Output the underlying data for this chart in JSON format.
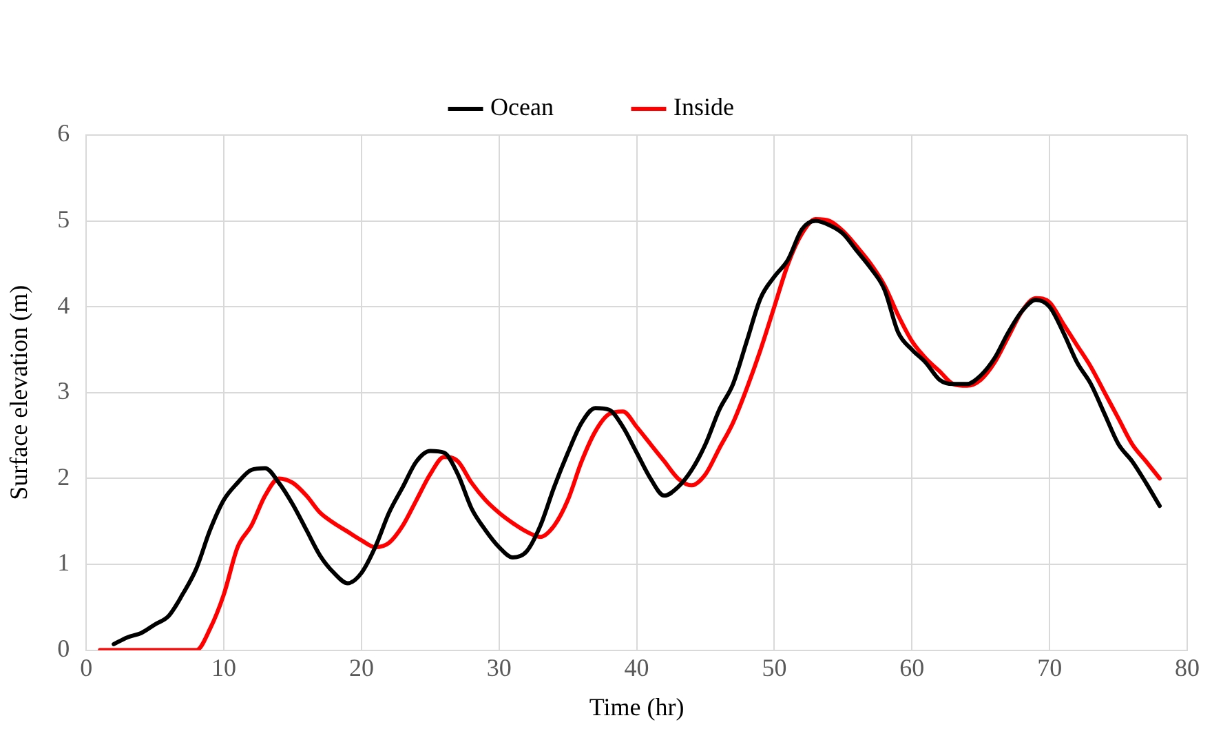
{
  "chart_data": {
    "type": "line",
    "xlabel": "Time (hr)",
    "ylabel": "Surface elevation (m)",
    "xlim": [
      0,
      80
    ],
    "xticks": [
      0,
      10,
      20,
      30,
      40,
      50,
      60,
      70,
      80
    ],
    "ylim": [
      0,
      6
    ],
    "yticks": [
      0,
      1,
      2,
      3,
      4,
      5,
      6
    ],
    "grid": true,
    "legend": "top",
    "marker": "none",
    "line_style": "solid",
    "series": [
      {
        "name": "Ocean",
        "color": "#000000",
        "x": [
          2,
          3,
          4,
          5,
          6,
          7,
          8,
          9,
          10,
          11,
          12,
          13,
          14,
          15,
          16,
          17,
          18,
          19,
          20,
          21,
          22,
          23,
          24,
          25,
          26,
          27,
          28,
          29,
          30,
          31,
          32,
          33,
          34,
          35,
          36,
          37,
          38,
          39,
          40,
          41,
          42,
          43,
          44,
          45,
          46,
          47,
          48,
          49,
          50,
          51,
          52,
          53,
          54,
          55,
          56,
          57,
          58,
          59,
          60,
          61,
          62,
          63,
          64,
          65,
          66,
          67,
          68,
          69,
          70,
          71,
          72,
          73,
          74,
          75,
          76,
          77,
          78
        ],
        "values": [
          0.07,
          0.15,
          0.2,
          0.3,
          0.4,
          0.65,
          0.95,
          1.4,
          1.75,
          1.95,
          2.1,
          2.12,
          1.95,
          1.7,
          1.4,
          1.1,
          0.9,
          0.78,
          0.9,
          1.2,
          1.6,
          1.9,
          2.2,
          2.32,
          2.3,
          2.05,
          1.65,
          1.4,
          1.2,
          1.08,
          1.15,
          1.45,
          1.9,
          2.3,
          2.65,
          2.82,
          2.8,
          2.6,
          2.3,
          2.0,
          1.8,
          1.9,
          2.1,
          2.4,
          2.8,
          3.1,
          3.6,
          4.1,
          4.35,
          4.55,
          4.9,
          5.0,
          4.95,
          4.85,
          4.65,
          4.45,
          4.2,
          3.7,
          3.5,
          3.35,
          3.15,
          3.1,
          3.1,
          3.2,
          3.4,
          3.7,
          3.95,
          4.08,
          4.0,
          3.7,
          3.35,
          3.1,
          2.75,
          2.4,
          2.2,
          1.95,
          1.68
        ]
      },
      {
        "name": "Inside",
        "color": "#ff0000",
        "x": [
          1,
          8,
          9,
          10,
          11,
          12,
          13,
          14,
          15,
          16,
          17,
          18,
          19,
          20,
          21,
          22,
          23,
          24,
          25,
          26,
          27,
          28,
          29,
          30,
          31,
          32,
          33,
          34,
          35,
          36,
          37,
          38,
          39,
          40,
          41,
          42,
          43,
          44,
          45,
          46,
          47,
          48,
          49,
          50,
          51,
          52,
          53,
          54,
          55,
          56,
          57,
          58,
          59,
          60,
          61,
          62,
          63,
          64,
          65,
          66,
          67,
          68,
          69,
          70,
          71,
          72,
          73,
          74,
          75,
          76,
          77,
          78
        ],
        "values": [
          0,
          0,
          0.25,
          0.65,
          1.2,
          1.45,
          1.8,
          2.0,
          1.95,
          1.8,
          1.6,
          1.48,
          1.38,
          1.28,
          1.2,
          1.25,
          1.45,
          1.75,
          2.05,
          2.25,
          2.2,
          1.95,
          1.75,
          1.6,
          1.48,
          1.38,
          1.32,
          1.45,
          1.75,
          2.2,
          2.55,
          2.75,
          2.78,
          2.6,
          2.4,
          2.2,
          2.0,
          1.92,
          2.05,
          2.35,
          2.65,
          3.05,
          3.5,
          4.0,
          4.5,
          4.85,
          5.02,
          5.0,
          4.88,
          4.7,
          4.5,
          4.25,
          3.9,
          3.6,
          3.4,
          3.25,
          3.1,
          3.08,
          3.15,
          3.35,
          3.65,
          3.95,
          4.1,
          4.05,
          3.8,
          3.55,
          3.3,
          3.0,
          2.7,
          2.4,
          2.2,
          2.0
        ]
      }
    ]
  }
}
